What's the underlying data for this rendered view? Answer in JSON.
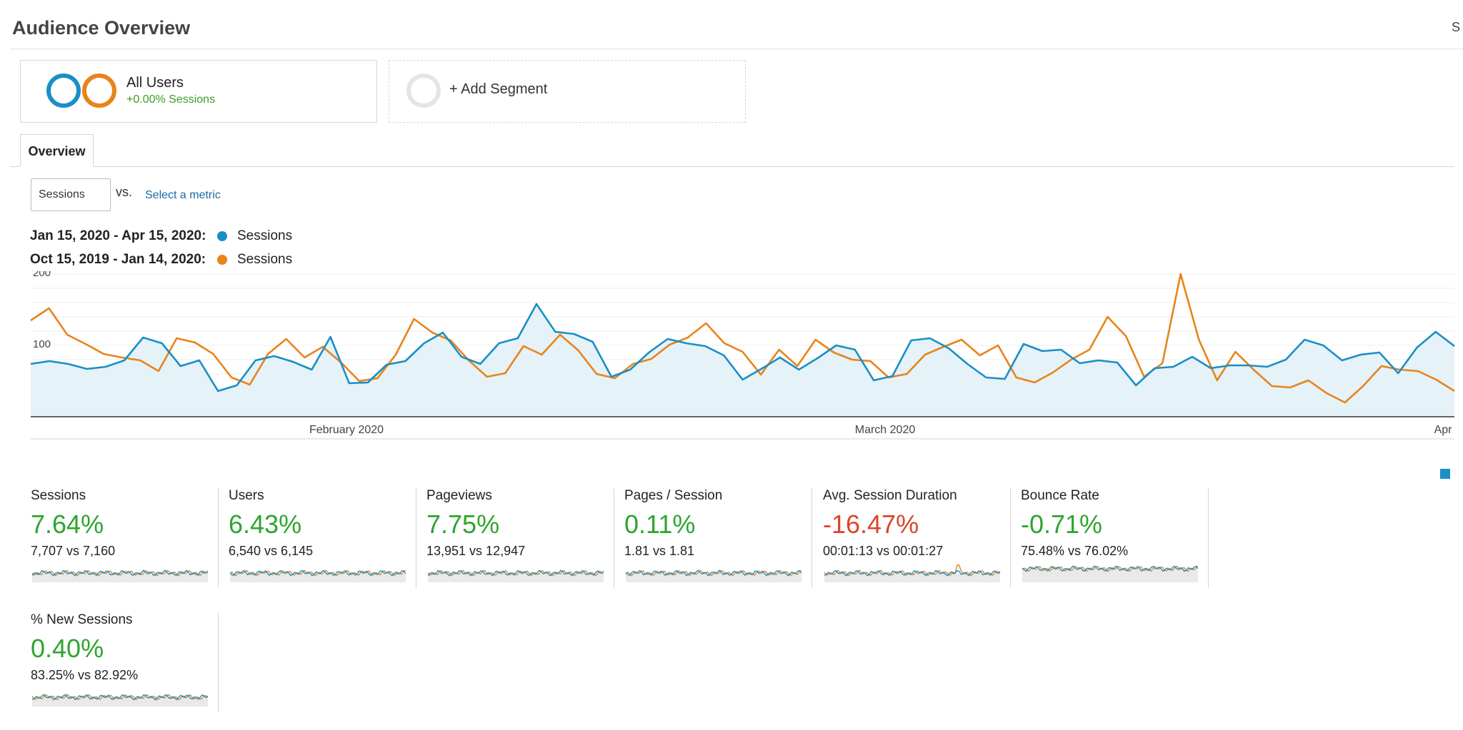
{
  "page": {
    "title": "Audience Overview",
    "corner_letter": "S"
  },
  "segments": {
    "all_users": {
      "name": "All Users",
      "sub": "+0.00% Sessions"
    },
    "add_segment": {
      "label": "+ Add Segment"
    }
  },
  "tabs": [
    {
      "label": "Overview"
    }
  ],
  "metric_picker": {
    "selected": "Sessions",
    "vs_label": "vs.",
    "select_link": "Select a metric"
  },
  "legend": [
    {
      "range": "Jan 15, 2020 - Apr 15, 2020:",
      "label": "Sessions",
      "color": "#1a8fc5"
    },
    {
      "range": "Oct 15, 2019 - Jan 14, 2020:",
      "label": "Sessions",
      "color": "#e8841a"
    }
  ],
  "chart_data": {
    "type": "line",
    "y_ticks": [
      "100",
      "200"
    ],
    "ylim": [
      0,
      200
    ],
    "x_tick_labels": [
      "February 2020",
      "March 2020",
      "Apr"
    ],
    "series": [
      {
        "name": "Sessions",
        "color": "#1a8fc5",
        "fill": true,
        "values": [
          74,
          78,
          74,
          67,
          70,
          79,
          111,
          103,
          71,
          79,
          36,
          44,
          79,
          85,
          77,
          66,
          112,
          47,
          48,
          73,
          78,
          103,
          118,
          84,
          74,
          103,
          110,
          158,
          119,
          116,
          105,
          56,
          66,
          90,
          109,
          103,
          99,
          86,
          52,
          67,
          83,
          66,
          82,
          100,
          94,
          51,
          57,
          107,
          110,
          96,
          74,
          55,
          53,
          102,
          92,
          94,
          75,
          79,
          76,
          44,
          68,
          70,
          84,
          68,
          72,
          72,
          70,
          80,
          108,
          100,
          79,
          87,
          90,
          61,
          97,
          119,
          99
        ]
      },
      {
        "name": "Sessions",
        "color": "#e8841a",
        "fill": false,
        "values": [
          135,
          152,
          115,
          102,
          88,
          83,
          79,
          64,
          110,
          104,
          88,
          55,
          45,
          88,
          109,
          83,
          98,
          76,
          50,
          54,
          87,
          137,
          118,
          107,
          79,
          56,
          61,
          99,
          87,
          115,
          93,
          60,
          54,
          74,
          81,
          101,
          111,
          131,
          103,
          91,
          59,
          94,
          71,
          108,
          90,
          80,
          78,
          55,
          60,
          87,
          98,
          108,
          86,
          100,
          55,
          48,
          62,
          80,
          94,
          140,
          113,
          56,
          75,
          200,
          108,
          51,
          91,
          66,
          43,
          41,
          51,
          33,
          20,
          43,
          71,
          66,
          64,
          52,
          36
        ]
      }
    ]
  },
  "metrics": [
    {
      "name": "Sessions",
      "pct": "7.64%",
      "compare": "7,707 vs 7,160",
      "trend": "up"
    },
    {
      "name": "Users",
      "pct": "6.43%",
      "compare": "6,540 vs 6,145",
      "trend": "up"
    },
    {
      "name": "Pageviews",
      "pct": "7.75%",
      "compare": "13,951 vs 12,947",
      "trend": "up"
    },
    {
      "name": "Pages / Session",
      "pct": "0.11%",
      "compare": "1.81 vs 1.81",
      "trend": "up"
    },
    {
      "name": "Avg. Session Duration",
      "pct": "-16.47%",
      "compare": "00:01:13 vs 00:01:27",
      "trend": "down"
    },
    {
      "name": "Bounce Rate",
      "pct": "-0.71%",
      "compare": "75.48% vs 76.02%",
      "trend": "up"
    },
    {
      "name": "% New Sessions",
      "pct": "0.40%",
      "compare": "83.25% vs 82.92%",
      "trend": "up"
    }
  ],
  "colors": {
    "positive": "#2da52d",
    "negative": "#d9452b",
    "current": "#1a8fc5",
    "previous": "#e8841a"
  }
}
